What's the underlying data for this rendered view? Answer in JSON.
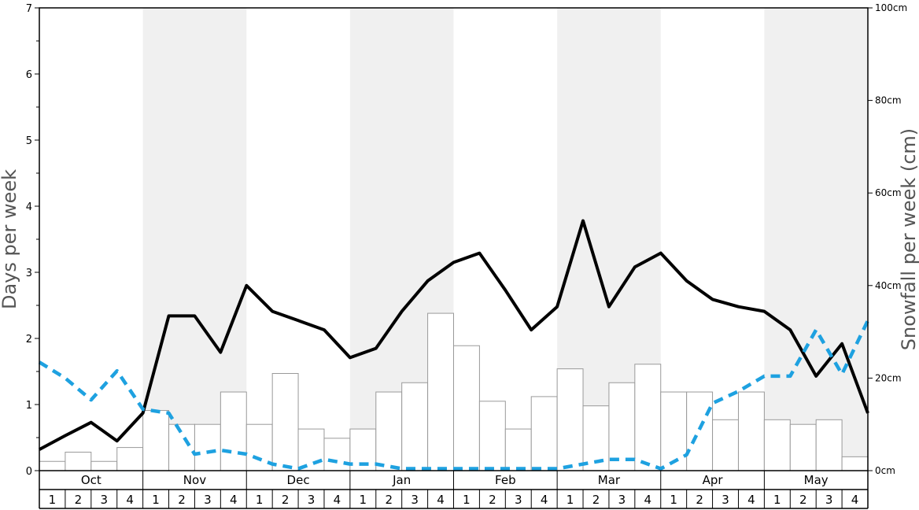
{
  "chart_data": {
    "type": "bar+line",
    "y_left": {
      "label": "Days per week",
      "ylim": [
        0,
        7
      ],
      "ticks": [
        "0",
        "1",
        "2",
        "3",
        "4",
        "5",
        "6",
        "7"
      ]
    },
    "y_right": {
      "label": "Snowfall per week (cm)",
      "ylim": [
        0,
        100
      ],
      "ticks": [
        "0cm",
        "20cm",
        "40cm",
        "60cm",
        "80cm",
        "100cm"
      ]
    },
    "months": [
      "Oct",
      "Nov",
      "Dec",
      "Jan",
      "Feb",
      "Mar",
      "Apr",
      "May"
    ],
    "weeks": [
      "1",
      "2",
      "3",
      "4"
    ],
    "shaded_months": [
      "Nov",
      "Jan",
      "Mar",
      "May"
    ],
    "colors": {
      "shade": "#f0f0f0",
      "bar_fill": "#ffffff",
      "bar_stroke": "#999999",
      "solid_line": "#000000",
      "dashed_line": "#1ea1e0"
    },
    "series": [
      {
        "kind": "bar",
        "axis": "right",
        "values": [
          2,
          4,
          2,
          5,
          13,
          10,
          10,
          17,
          10,
          21,
          9,
          7,
          9,
          17,
          19,
          34,
          27,
          15,
          9,
          16,
          22,
          14,
          19,
          23,
          17,
          17,
          11,
          17,
          11,
          10,
          11,
          3
        ]
      },
      {
        "kind": "line",
        "style": "solid",
        "axis": "left",
        "values": [
          0.32,
          0.53,
          0.73,
          0.45,
          0.87,
          2.34,
          2.34,
          1.79,
          2.8,
          2.41,
          2.27,
          2.13,
          1.71,
          1.85,
          2.41,
          2.87,
          3.15,
          3.29,
          2.73,
          2.13,
          2.48,
          3.78,
          2.48,
          3.08,
          3.29,
          2.87,
          2.59,
          2.48,
          2.41,
          2.13,
          1.43,
          1.92,
          0.87
        ]
      },
      {
        "kind": "line",
        "style": "dashed",
        "axis": "left",
        "values": [
          1.64,
          1.4,
          1.07,
          1.51,
          0.93,
          0.87,
          0.25,
          0.31,
          0.25,
          0.1,
          0.03,
          0.17,
          0.1,
          0.1,
          0.03,
          0.03,
          0.03,
          0.03,
          0.03,
          0.03,
          0.03,
          0.1,
          0.17,
          0.17,
          0.03,
          0.24,
          1.02,
          1.2,
          1.43,
          1.43,
          2.13,
          1.46,
          2.27
        ]
      }
    ]
  }
}
